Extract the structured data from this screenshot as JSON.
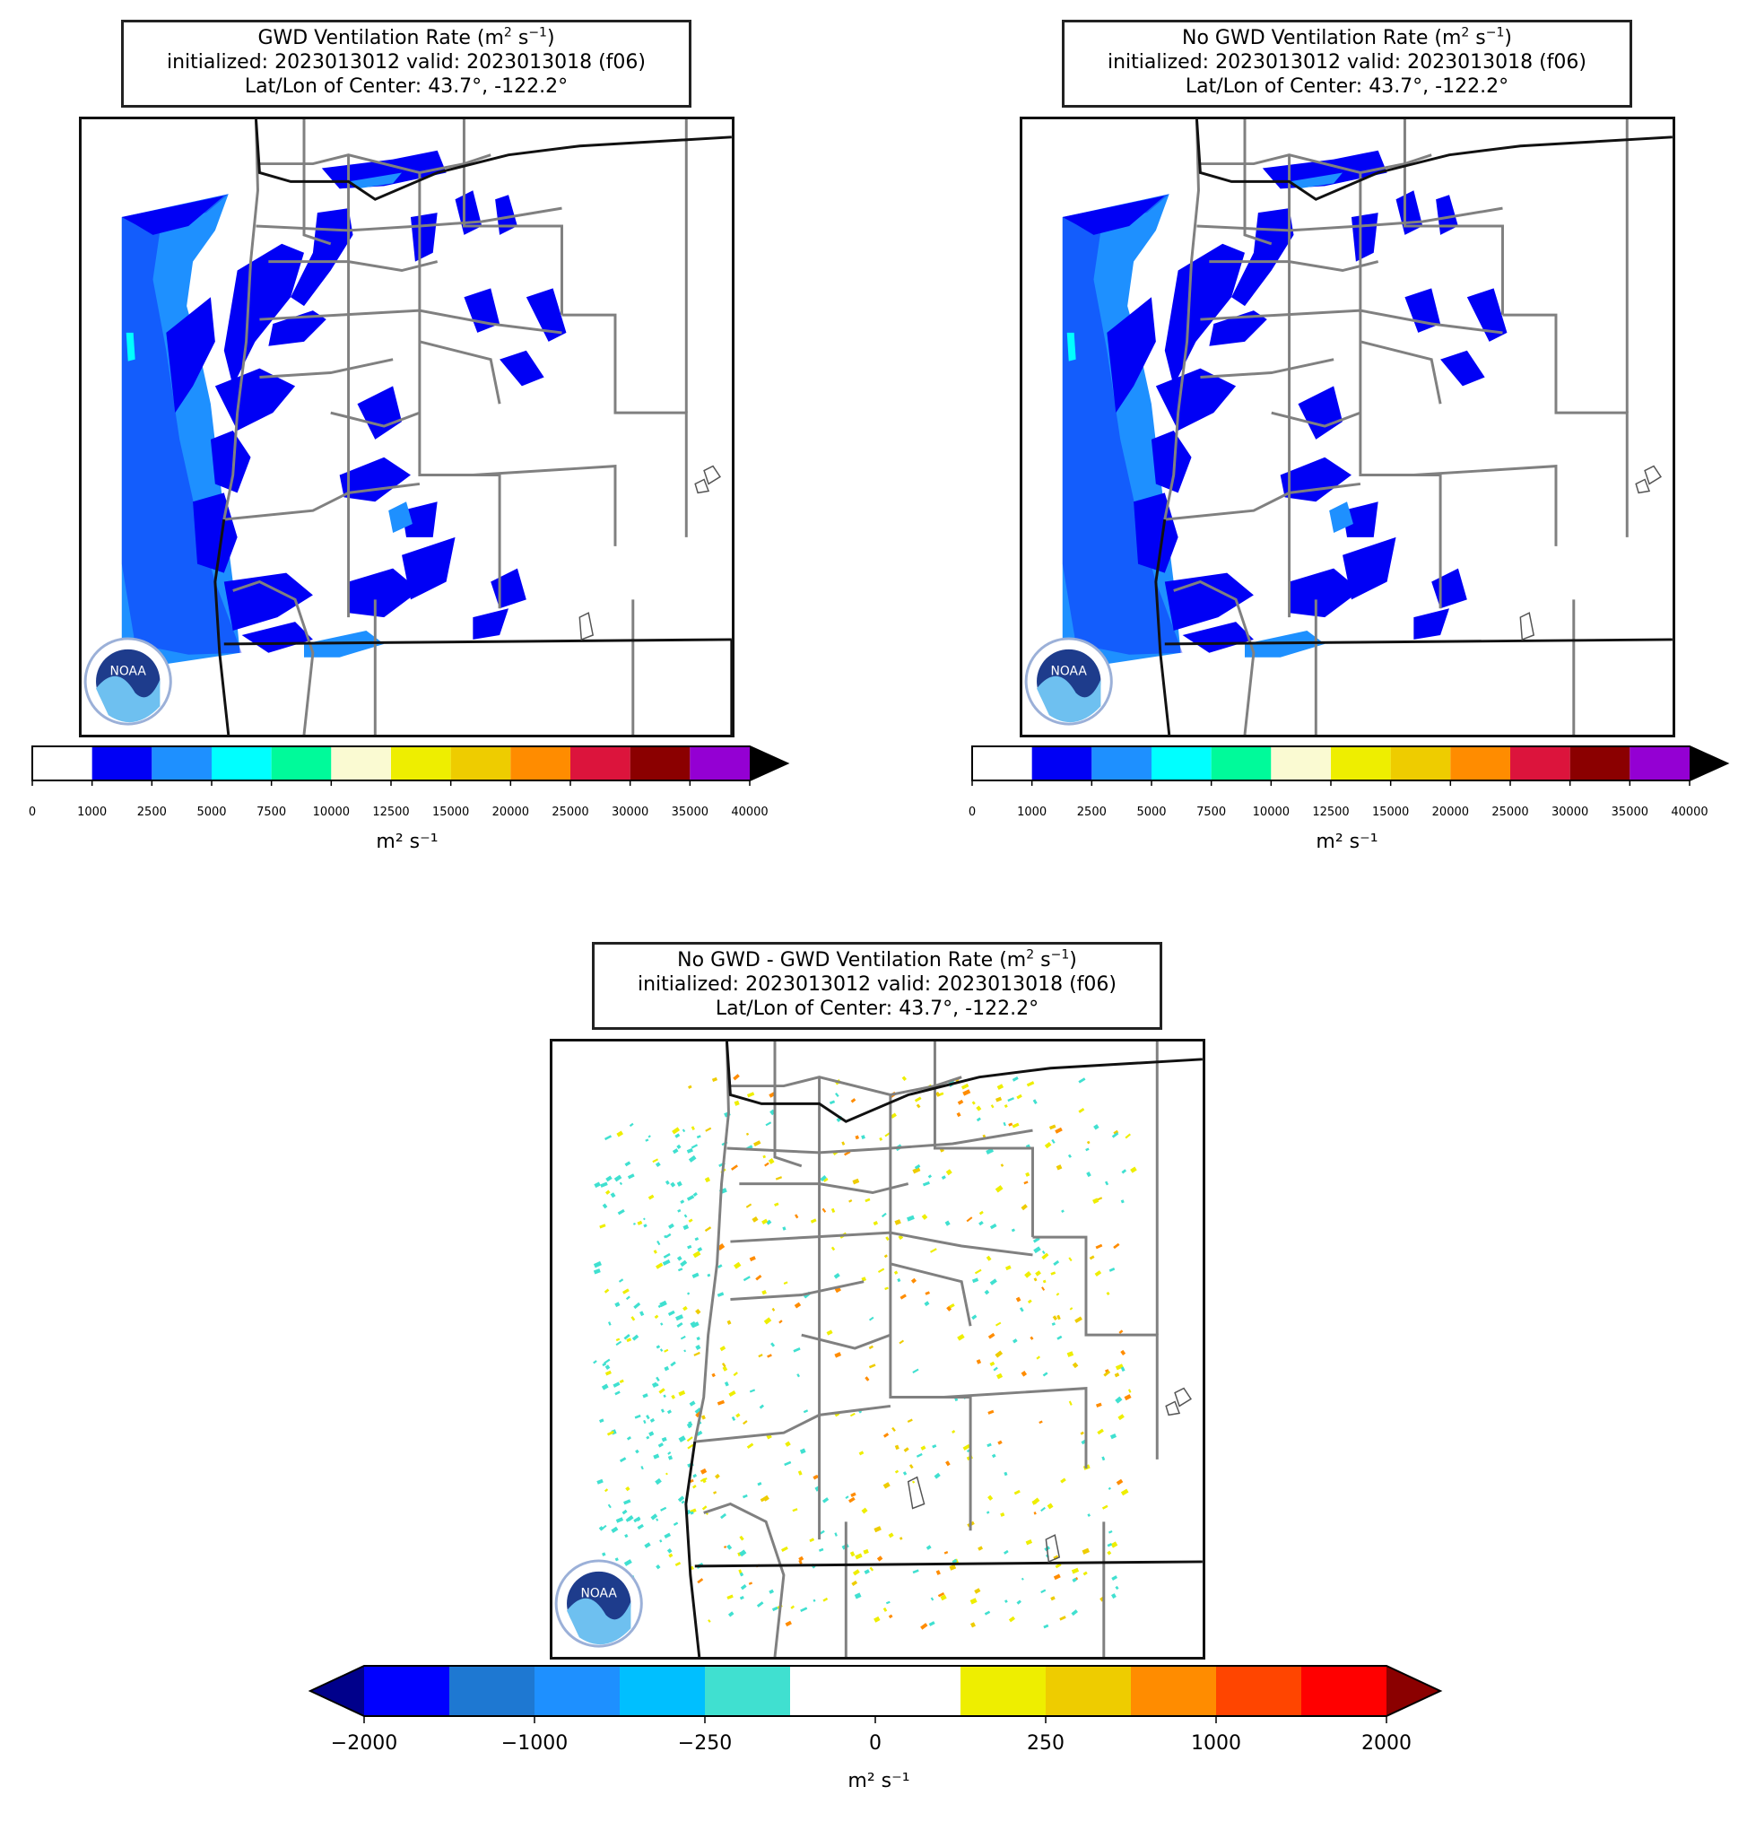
{
  "panels": [
    {
      "title_line1": "GWD Ventilation Rate (m",
      "title_line2": "initialized: 2023013012 valid: 2023013018 (f06)",
      "title_line3": "Lat/Lon of Center: 43.7°, -122.2°",
      "unit_label": "m² s⁻¹"
    },
    {
      "title_line1": "No GWD Ventilation Rate (m",
      "title_line2": "initialized: 2023013012 valid: 2023013018 (f06)",
      "title_line3": "Lat/Lon of Center: 43.7°, -122.2°",
      "unit_label": "m² s⁻¹"
    },
    {
      "title_line1": "No GWD - GWD Ventilation Rate (m",
      "title_line2": "initialized: 2023013012 valid: 2023013018 (f06)",
      "title_line3": "Lat/Lon of Center: 43.7°, -122.2°",
      "unit_label": "m² s⁻¹"
    }
  ],
  "title_exponent_unit": "2",
  "title_s_unit": " s",
  "title_exponent_s": "−1",
  "logo_text": "NOAA",
  "colorbar_abs": {
    "ticks": [
      "0",
      "1000",
      "2500",
      "5000",
      "7500",
      "10000",
      "12500",
      "15000",
      "20000",
      "25000",
      "30000",
      "35000",
      "40000"
    ],
    "colors": [
      "#ffffff",
      "#0000f5",
      "#1e90ff",
      "#00ffff",
      "#00fa9a",
      "#fafad2",
      "#eeee00",
      "#eecc00",
      "#ff8c00",
      "#dc143c",
      "#8b0000",
      "#9400d3"
    ],
    "extend_color": "#000000"
  },
  "colorbar_diff": {
    "ticks": [
      "−2000",
      "−1000",
      "−250",
      "0",
      "250",
      "1000",
      "2000"
    ],
    "colors": [
      "#0000ff",
      "#1e78d2",
      "#1e90ff",
      "#00bfff",
      "#40e0d0",
      "#ffffff",
      "#ffffff",
      "#eeee00",
      "#eecc00",
      "#ff8c00",
      "#ff4500",
      "#ff0000"
    ],
    "extend_low": "#00008b",
    "extend_high": "#8b0000"
  }
}
